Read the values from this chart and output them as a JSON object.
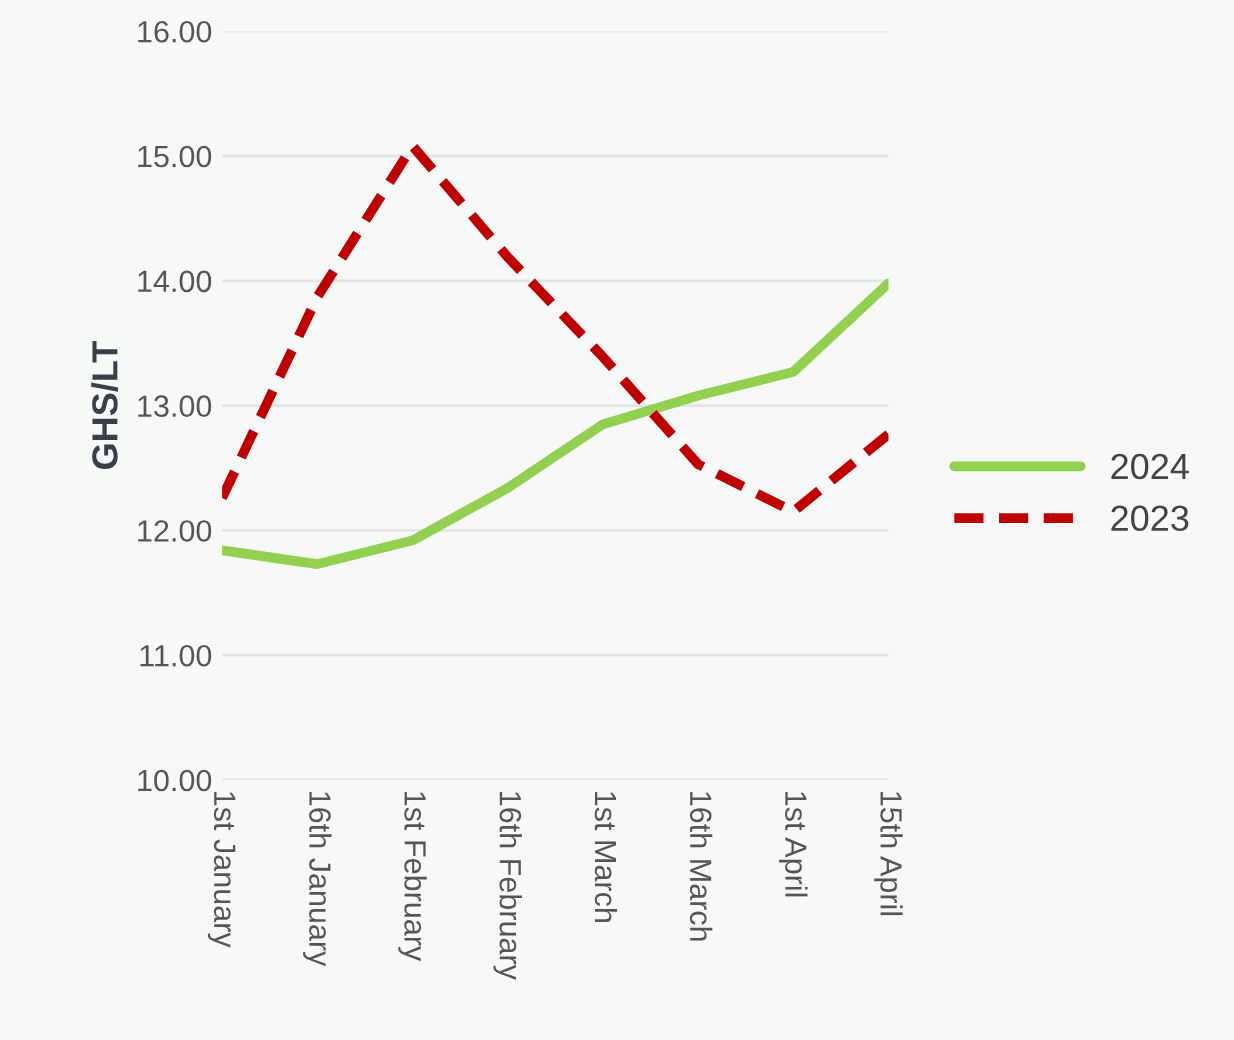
{
  "chart_data": {
    "type": "line",
    "ylabel": "GHS/LT",
    "categories": [
      "1st January",
      "16th January",
      "1st February",
      "16th February",
      "1st March",
      "16th March",
      "1st April",
      "15th April"
    ],
    "series": [
      {
        "name": "2024",
        "color": "#92d050",
        "line_style": "solid",
        "values": [
          11.84,
          11.73,
          11.92,
          12.34,
          12.85,
          13.08,
          13.27,
          13.98
        ]
      },
      {
        "name": "2023",
        "color": "#c00000",
        "line_style": "dashed",
        "values": [
          12.26,
          13.87,
          15.08,
          14.19,
          13.39,
          12.53,
          12.15,
          12.77
        ]
      }
    ],
    "ylim": [
      10,
      16
    ],
    "yticks": [
      {
        "value": 10,
        "label": "10.00"
      },
      {
        "value": 11,
        "label": "11.00"
      },
      {
        "value": 12,
        "label": "12.00"
      },
      {
        "value": 13,
        "label": "13.00"
      },
      {
        "value": 14,
        "label": "14.00"
      },
      {
        "value": 15,
        "label": "15.00"
      },
      {
        "value": 16,
        "label": "16.00"
      }
    ],
    "grid": "y",
    "legend": "right",
    "marker": "none"
  }
}
